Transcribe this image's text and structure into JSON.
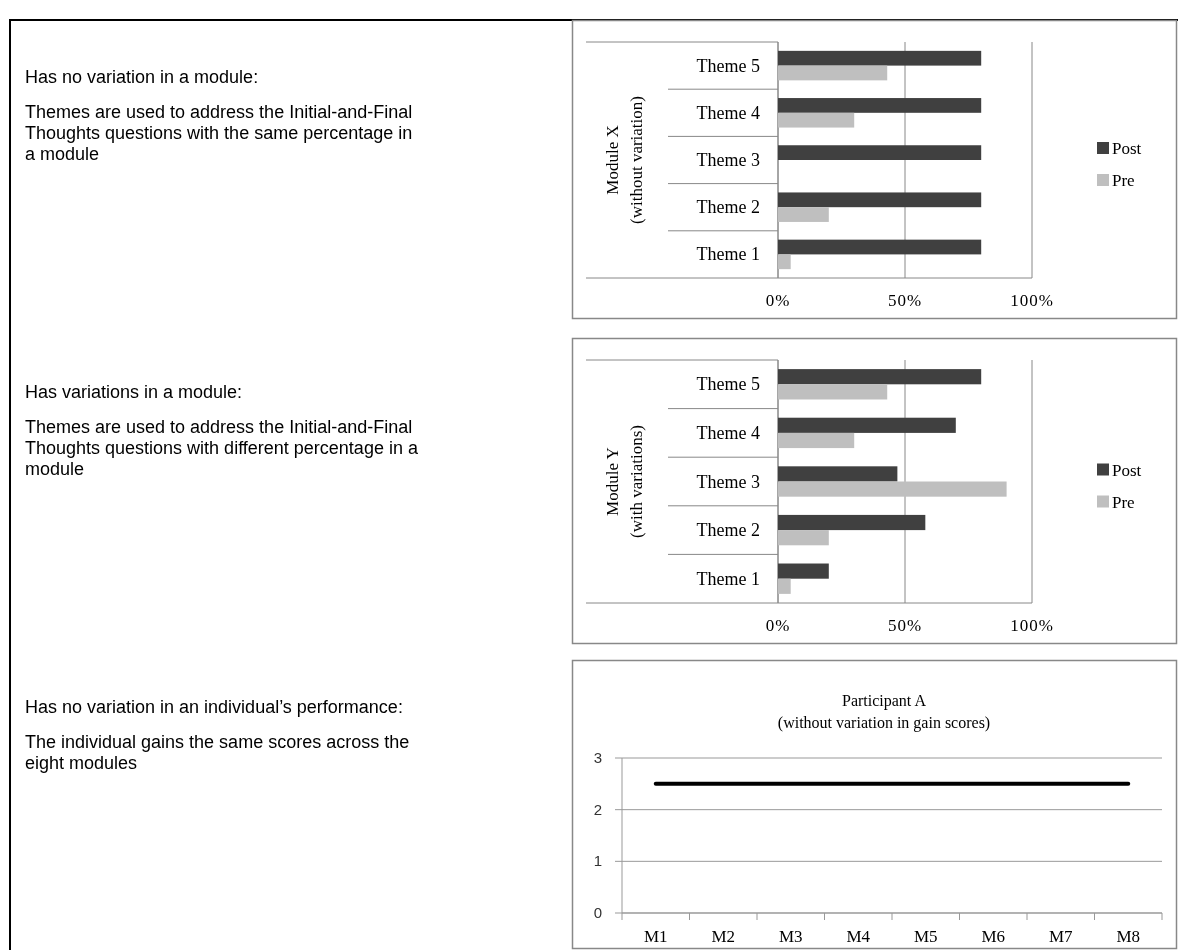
{
  "chart_data": [
    {
      "type": "other",
      "title": "Has no variation in a module:",
      "annotations": [
        "Themes are used to address the Initial-and-Final Thoughts questions with the same percentage in a module"
      ]
    },
    {
      "type": "bar",
      "orientation": "horizontal",
      "ylabel": "Module X\n(without variation)",
      "categories": [
        "Theme 5",
        "Theme 4",
        "Theme 3",
        "Theme 2",
        "Theme 1"
      ],
      "series": [
        {
          "name": "Post",
          "color": "#404040",
          "values": [
            80,
            80,
            80,
            80,
            80
          ]
        },
        {
          "name": "Pre",
          "color": "#bfbfbf",
          "values": [
            43,
            30,
            0,
            20,
            5
          ]
        }
      ],
      "xlim": [
        0,
        100
      ],
      "xticks": [
        {
          "value": 0,
          "label": "0%"
        },
        {
          "value": 50,
          "label": "50%"
        },
        {
          "value": 100,
          "label": "100%"
        }
      ],
      "grid": "x",
      "legend": "right"
    },
    {
      "type": "other",
      "title": "Has variations in a module:",
      "annotations": [
        "Themes are used to address the Initial-and-Final Thoughts questions with different percentage in a module"
      ]
    },
    {
      "type": "bar",
      "orientation": "horizontal",
      "ylabel": "Module Y\n(with variations)",
      "categories": [
        "Theme 5",
        "Theme 4",
        "Theme 3",
        "Theme 2",
        "Theme 1"
      ],
      "series": [
        {
          "name": "Post",
          "color": "#404040",
          "values": [
            80,
            70,
            47,
            58,
            20
          ]
        },
        {
          "name": "Pre",
          "color": "#bfbfbf",
          "values": [
            43,
            30,
            90,
            20,
            5
          ]
        }
      ],
      "xlim": [
        0,
        100
      ],
      "xticks": [
        {
          "value": 0,
          "label": "0%"
        },
        {
          "value": 50,
          "label": "50%"
        },
        {
          "value": 100,
          "label": "100%"
        }
      ],
      "grid": "x",
      "legend": "right"
    },
    {
      "type": "other",
      "title": "Has no variation in an individual’s performance:",
      "annotations": [
        "The individual gains the same scores across the eight modules"
      ]
    },
    {
      "type": "line",
      "title": "Participant A\n(without variation in gain scores)",
      "categories": [
        "M1",
        "M2",
        "M3",
        "M4",
        "M5",
        "M6",
        "M7",
        "M8"
      ],
      "series": [
        {
          "color": "#000000",
          "values": [
            2.5,
            2.5,
            2.5,
            2.5,
            2.5,
            2.5,
            2.5,
            2.5
          ]
        }
      ],
      "ylim": [
        0,
        3
      ],
      "yticks": [
        0,
        1,
        2,
        3
      ],
      "grid": "y",
      "legend": false,
      "marker": "none",
      "line_style": "solid"
    }
  ]
}
